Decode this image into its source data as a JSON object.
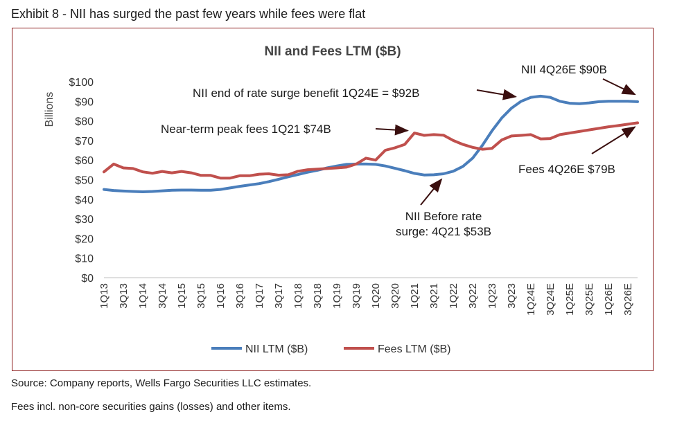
{
  "exhibit_title": "Exhibit 8 - NII has surged the past few years while fees were flat",
  "notes": {
    "source": "Source: Company reports, Wells Fargo Securities LLC estimates.",
    "footnote": "Fees incl. non-core securities gains (losses) and other items."
  },
  "colors": {
    "nii": "#4a7ebb",
    "fees": "#c0504d",
    "frame": "#8b1a1a",
    "annotation_arrow": "#3a0f0f"
  },
  "chart_data": {
    "type": "line",
    "title": "NII and Fees LTM ($B)",
    "ylabel": "Billions",
    "xlabel": "",
    "ylim": [
      0,
      100
    ],
    "yticks": [
      0,
      10,
      20,
      30,
      40,
      50,
      60,
      70,
      80,
      90,
      100
    ],
    "ytick_labels": [
      "$0",
      "$10",
      "$20",
      "$30",
      "$40",
      "$50",
      "$60",
      "$70",
      "$80",
      "$90",
      "$100"
    ],
    "grid": false,
    "legend_position": "bottom",
    "x": [
      "1Q13",
      "2Q13",
      "3Q13",
      "4Q13",
      "1Q14",
      "2Q14",
      "3Q14",
      "4Q14",
      "1Q15",
      "2Q15",
      "3Q15",
      "4Q15",
      "1Q16",
      "2Q16",
      "3Q16",
      "4Q16",
      "1Q17",
      "2Q17",
      "3Q17",
      "4Q17",
      "1Q18",
      "2Q18",
      "3Q18",
      "4Q18",
      "1Q19",
      "2Q19",
      "3Q19",
      "4Q19",
      "1Q20",
      "2Q20",
      "3Q20",
      "4Q20",
      "1Q21",
      "2Q21",
      "3Q21",
      "4Q21",
      "1Q22",
      "2Q22",
      "3Q22",
      "4Q22",
      "1Q23",
      "2Q23",
      "3Q23",
      "4Q23",
      "1Q24E",
      "2Q24E",
      "3Q24E",
      "4Q24E",
      "1Q25E",
      "2Q25E",
      "3Q25E",
      "4Q25E",
      "1Q26E",
      "2Q26E",
      "3Q26E",
      "4Q26E"
    ],
    "xtick_labels": [
      "1Q13",
      "3Q13",
      "1Q14",
      "3Q14",
      "1Q15",
      "3Q15",
      "1Q16",
      "3Q16",
      "1Q17",
      "3Q17",
      "1Q18",
      "3Q18",
      "1Q19",
      "3Q19",
      "1Q20",
      "3Q20",
      "1Q21",
      "3Q21",
      "1Q22",
      "3Q22",
      "1Q23",
      "3Q23",
      "1Q24E",
      "3Q24E",
      "1Q25E",
      "3Q25E",
      "1Q26E",
      "3Q26E"
    ],
    "series": [
      {
        "name": "NII LTM ($B)",
        "values": [
          45,
          44.5,
          44.2,
          44,
          43.8,
          44,
          44.3,
          44.6,
          44.7,
          44.7,
          44.6,
          44.6,
          45,
          45.8,
          46.6,
          47.3,
          48,
          49,
          50.2,
          51.5,
          52.6,
          53.8,
          54.8,
          56,
          57,
          57.8,
          58,
          58,
          57.8,
          57,
          55.8,
          54.6,
          53.2,
          52.4,
          52.5,
          53,
          54.3,
          56.8,
          61,
          67.5,
          75,
          81.5,
          86.5,
          90,
          92,
          92.6,
          92,
          90,
          89,
          88.8,
          89.2,
          89.8,
          90,
          90,
          90,
          89.8
        ]
      },
      {
        "name": "Fees LTM ($B)",
        "values": [
          54,
          58,
          56,
          55.7,
          54,
          53.3,
          54.2,
          53.5,
          54.2,
          53.5,
          52.2,
          52.2,
          50.8,
          50.8,
          52,
          52,
          52.8,
          53,
          52.3,
          52.5,
          54.3,
          55.1,
          55.4,
          55.7,
          56,
          56.4,
          58,
          61,
          60,
          65,
          66.3,
          68,
          73.8,
          72.6,
          73,
          72.7,
          70,
          68,
          66.5,
          65.5,
          66,
          70.3,
          72.3,
          72.6,
          73,
          70.8,
          71,
          73,
          73.8,
          74.6,
          75.4,
          76.2,
          77,
          77.6,
          78.3,
          79
        ]
      }
    ],
    "annotations": [
      {
        "label": "NII 4Q26E $90B",
        "point_x": "4Q26E",
        "point_y": 90
      },
      {
        "label": "NII end of rate surge benefit 1Q24E = $92B",
        "point_x": "1Q24E",
        "point_y": 92
      },
      {
        "label": "Near-term peak fees 1Q21 $74B",
        "point_x": "1Q21",
        "point_y": 74
      },
      {
        "label": "Fees 4Q26E $79B",
        "point_x": "4Q26E",
        "point_y": 79
      },
      {
        "label_line1": "NII Before rate",
        "label_line2": "surge: 4Q21 $53B",
        "point_x": "4Q21",
        "point_y": 53
      }
    ]
  }
}
